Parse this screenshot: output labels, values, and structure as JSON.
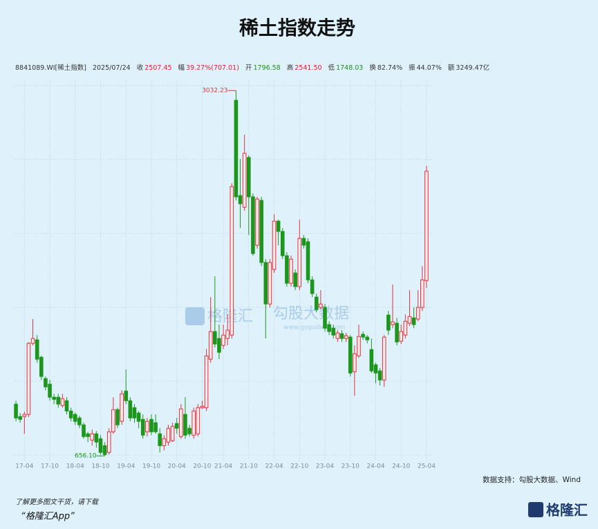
{
  "chart_data": {
    "type": "candlestick",
    "title": "稀土指数走势",
    "header": {
      "code": "8841089.WI[稀土指数]",
      "date": "2025/07/24",
      "items": [
        {
          "label": "收",
          "value": "2507.45",
          "color": "#d9212c"
        },
        {
          "label": "幅",
          "value": "39.27%(707.01)",
          "color": "#d9212c"
        },
        {
          "label": "开",
          "value": "1796.58",
          "color": "#1e8f1e"
        },
        {
          "label": "高",
          "value": "2541.50",
          "color": "#d9212c"
        },
        {
          "label": "低",
          "value": "1748.03",
          "color": "#1e8f1e"
        },
        {
          "label": "换",
          "value": "82.74%",
          "color": "#333333"
        },
        {
          "label": "振",
          "value": "44.07%",
          "color": "#333333"
        },
        {
          "label": "额",
          "value": "3249.47亿",
          "color": "#333333"
        }
      ]
    },
    "categories": [
      null,
      null,
      "17-04",
      null,
      null,
      null,
      null,
      null,
      "17-10",
      null,
      null,
      null,
      null,
      null,
      "18-04",
      null,
      null,
      null,
      null,
      null,
      "18-10",
      null,
      null,
      null,
      null,
      null,
      "19-04",
      null,
      null,
      null,
      null,
      null,
      "19-10",
      null,
      null,
      null,
      null,
      null,
      "20-04",
      null,
      null,
      null,
      null,
      null,
      "20-10",
      null,
      null,
      null,
      null,
      "21-04",
      null,
      null,
      null,
      null,
      null,
      "21-10",
      null,
      null,
      null,
      null,
      null,
      "22-04",
      null,
      null,
      null,
      null,
      null,
      "22-10",
      null,
      null,
      null,
      null,
      null,
      "23-04",
      null,
      null,
      null,
      null,
      null,
      "23-10",
      null,
      null,
      null,
      null,
      null,
      "24-04",
      null,
      null,
      null,
      null,
      null,
      "24-10",
      null,
      null,
      null,
      null,
      null,
      "25-04"
    ],
    "open": [
      993,
      912,
      912,
      926,
      1388,
      1411,
      1298,
      1159,
      1123,
      1038,
      1038,
      984,
      1015,
      948,
      926,
      903,
      858,
      800,
      759,
      800,
      768,
      723,
      679,
      813,
      957,
      881,
      1078,
      1015,
      970,
      935,
      894,
      813,
      894,
      872,
      800,
      723,
      746,
      755,
      867,
      782,
      926,
      836,
      791,
      800,
      970,
      970,
      1285,
      1465,
      1420,
      1375,
      1420,
      1442,
      2969,
      2349,
      2273,
      2597,
      2341,
      2026,
      2318,
      1914,
      1644,
      1869,
      2183,
      2116,
      1958,
      1779,
      1846,
      1757,
      2071,
      2049,
      1801,
      1689,
      1622,
      1622,
      1510,
      1487,
      1420,
      1451,
      1420,
      1429,
      1204,
      1307,
      1447,
      1429,
      1348,
      1249,
      1209,
      1150,
      1572,
      1510,
      1519,
      1402,
      1442,
      1519,
      1554,
      1546,
      1622,
      1796.58
    ],
    "high": [
      1015,
      935,
      944,
      1397,
      1546,
      1442,
      1307,
      1173,
      1150,
      1060,
      1060,
      1060,
      1038,
      970,
      939,
      917,
      872,
      813,
      827,
      818,
      791,
      746,
      836,
      1038,
      970,
      1083,
      1218,
      1038,
      993,
      948,
      926,
      903,
      926,
      926,
      836,
      791,
      858,
      872,
      903,
      993,
      1038,
      858,
      970,
      993,
      1015,
      1352,
      1689,
      1824,
      1510,
      1510,
      1577,
      2430,
      3032.23,
      2588,
      2745,
      2610,
      2363,
      2341,
      2341,
      1936,
      1936,
      2228,
      2192,
      2138,
      1981,
      1958,
      1869,
      2192,
      2093,
      2071,
      1824,
      1712,
      1734,
      1644,
      1532,
      1510,
      1474,
      1474,
      1456,
      1442,
      1375,
      1510,
      1465,
      1442,
      1420,
      1262,
      1227,
      1442,
      1599,
      1770,
      1554,
      1510,
      1577,
      1734,
      1622,
      1734,
      1891,
      2541.5
    ],
    "low": [
      881,
      872,
      800,
      908,
      1375,
      1262,
      1150,
      1083,
      1015,
      993,
      970,
      970,
      926,
      881,
      858,
      836,
      768,
      746,
      723,
      710,
      665,
      656.1,
      665,
      800,
      836,
      858,
      993,
      881,
      872,
      836,
      768,
      782,
      791,
      800,
      679,
      692,
      723,
      746,
      800,
      768,
      768,
      782,
      768,
      782,
      962,
      948,
      1262,
      1361,
      1285,
      1352,
      1375,
      1420,
      2318,
      2138,
      2251,
      2093,
      1958,
      2004,
      1891,
      1420,
      1622,
      1846,
      2026,
      1936,
      1757,
      1757,
      1734,
      1734,
      2004,
      1779,
      1689,
      1590,
      1608,
      1465,
      1442,
      1420,
      1397,
      1397,
      1397,
      1173,
      1047,
      1294,
      1411,
      1388,
      1195,
      1128,
      1114,
      1105,
      1442,
      1487,
      1375,
      1384,
      1420,
      1501,
      1487,
      1532,
      1599,
      1748.03
    ],
    "close": [
      903,
      894,
      926,
      1388,
      1420,
      1285,
      1173,
      1105,
      1038,
      1024,
      993,
      1029,
      948,
      903,
      881,
      858,
      782,
      782,
      800,
      746,
      679,
      665,
      813,
      957,
      858,
      1060,
      1015,
      903,
      903,
      881,
      791,
      881,
      813,
      813,
      723,
      768,
      836,
      849,
      836,
      962,
      791,
      800,
      948,
      970,
      979,
      1307,
      1465,
      1384,
      1330,
      1442,
      1474,
      2408,
      2341,
      2296,
      2624,
      2341,
      1972,
      2327,
      1914,
      1644,
      1914,
      2183,
      2116,
      1958,
      1779,
      1936,
      1757,
      2071,
      2026,
      1801,
      1712,
      1608,
      1644,
      1487,
      1465,
      1442,
      1456,
      1420,
      1438,
      1195,
      1321,
      1433,
      1429,
      1411,
      1209,
      1195,
      1150,
      1429,
      1474,
      1528,
      1397,
      1465,
      1532,
      1563,
      1510,
      1622,
      1801,
      2507.45
    ],
    "up_color": "#e0303a",
    "down_color": "#1c961c",
    "ylim": [
      630,
      3100
    ],
    "annotations": {
      "max": "3032.23",
      "min": "656.10"
    },
    "watermark": {
      "logo": "格隆汇",
      "brand": "勾股大数据",
      "url": "www.gogudata.com"
    },
    "footer": {
      "source": "数据支持：勾股大数据、Wind",
      "promo": "了解更多图文干货，请下载",
      "app": "“格隆汇App”",
      "logo": "格隆汇"
    }
  }
}
